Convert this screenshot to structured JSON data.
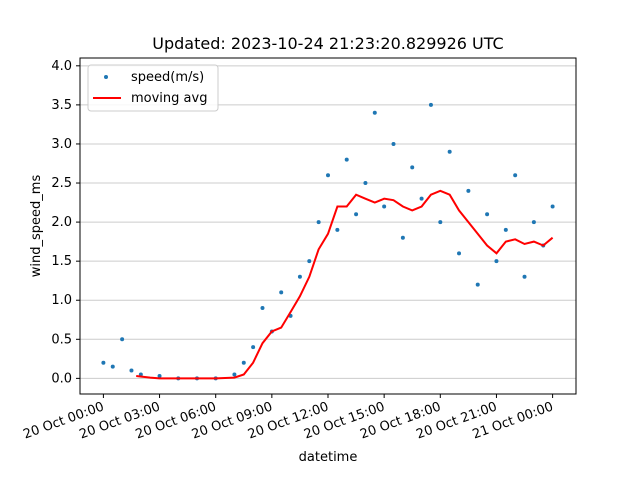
{
  "chart_data": {
    "type": "scatter",
    "title": "Updated: 2023-10-24 21:23:20.829926 UTC",
    "xlabel": "datetime",
    "ylabel": "wind_speed_ms",
    "xlim": [
      "2023-10-19T22:45",
      "2023-10-21T01:15"
    ],
    "ylim": [
      -0.2,
      4.1
    ],
    "y_ticks": [
      0.0,
      0.5,
      1.0,
      1.5,
      2.0,
      2.5,
      3.0,
      3.5,
      4.0
    ],
    "y_tick_labels": [
      "0.0",
      "0.5",
      "1.0",
      "1.5",
      "2.0",
      "2.5",
      "3.0",
      "3.5",
      "4.0"
    ],
    "x_ticks": [
      "2023-10-20T00:00",
      "2023-10-20T03:00",
      "2023-10-20T06:00",
      "2023-10-20T09:00",
      "2023-10-20T12:00",
      "2023-10-20T15:00",
      "2023-10-20T18:00",
      "2023-10-20T21:00",
      "2023-10-21T00:00"
    ],
    "x_tick_labels": [
      "20 Oct 00:00",
      "20 Oct 03:00",
      "20 Oct 06:00",
      "20 Oct 09:00",
      "20 Oct 12:00",
      "20 Oct 15:00",
      "20 Oct 18:00",
      "20 Oct 21:00",
      "21 Oct 00:00"
    ],
    "x_tick_rotation_deg": 20,
    "grid": "horizontal",
    "legend_position": "top-left",
    "series": [
      {
        "name": "speed(m/s)",
        "type": "scatter",
        "color": "#1f77b4",
        "x": [
          "2023-10-20T00:00",
          "2023-10-20T00:30",
          "2023-10-20T01:00",
          "2023-10-20T01:30",
          "2023-10-20T02:00",
          "2023-10-20T03:00",
          "2023-10-20T04:00",
          "2023-10-20T05:00",
          "2023-10-20T06:00",
          "2023-10-20T07:00",
          "2023-10-20T07:30",
          "2023-10-20T08:00",
          "2023-10-20T08:30",
          "2023-10-20T09:00",
          "2023-10-20T09:30",
          "2023-10-20T10:00",
          "2023-10-20T10:30",
          "2023-10-20T11:00",
          "2023-10-20T11:30",
          "2023-10-20T12:00",
          "2023-10-20T12:30",
          "2023-10-20T13:00",
          "2023-10-20T13:30",
          "2023-10-20T14:00",
          "2023-10-20T14:30",
          "2023-10-20T15:00",
          "2023-10-20T15:30",
          "2023-10-20T16:00",
          "2023-10-20T16:30",
          "2023-10-20T17:00",
          "2023-10-20T17:30",
          "2023-10-20T18:00",
          "2023-10-20T18:30",
          "2023-10-20T19:00",
          "2023-10-20T19:30",
          "2023-10-20T20:00",
          "2023-10-20T20:30",
          "2023-10-20T21:00",
          "2023-10-20T21:30",
          "2023-10-20T22:00",
          "2023-10-20T22:30",
          "2023-10-20T23:00",
          "2023-10-20T23:30",
          "2023-10-21T00:00"
        ],
        "y": [
          0.2,
          0.15,
          0.5,
          0.1,
          0.05,
          0.03,
          0.0,
          0.0,
          0.0,
          0.05,
          0.2,
          0.4,
          0.9,
          0.6,
          1.1,
          0.8,
          1.3,
          1.5,
          2.0,
          2.6,
          1.9,
          2.8,
          2.1,
          2.5,
          3.4,
          2.2,
          3.0,
          1.8,
          2.7,
          2.3,
          3.5,
          2.0,
          2.9,
          1.6,
          2.4,
          1.2,
          2.1,
          1.5,
          1.9,
          2.6,
          1.3,
          2.0,
          1.7,
          2.2
        ]
      },
      {
        "name": "moving avg",
        "type": "line",
        "color": "#ff0000",
        "x": [
          "2023-10-20T01:45",
          "2023-10-20T02:30",
          "2023-10-20T03:00",
          "2023-10-20T04:00",
          "2023-10-20T05:00",
          "2023-10-20T06:00",
          "2023-10-20T07:00",
          "2023-10-20T07:30",
          "2023-10-20T08:00",
          "2023-10-20T08:30",
          "2023-10-20T09:00",
          "2023-10-20T09:30",
          "2023-10-20T10:00",
          "2023-10-20T10:30",
          "2023-10-20T11:00",
          "2023-10-20T11:30",
          "2023-10-20T12:00",
          "2023-10-20T12:30",
          "2023-10-20T13:00",
          "2023-10-20T13:30",
          "2023-10-20T14:00",
          "2023-10-20T14:30",
          "2023-10-20T15:00",
          "2023-10-20T15:30",
          "2023-10-20T16:00",
          "2023-10-20T16:30",
          "2023-10-20T17:00",
          "2023-10-20T17:30",
          "2023-10-20T18:00",
          "2023-10-20T18:30",
          "2023-10-20T19:00",
          "2023-10-20T19:30",
          "2023-10-20T20:00",
          "2023-10-20T20:30",
          "2023-10-20T21:00",
          "2023-10-20T21:30",
          "2023-10-20T22:00",
          "2023-10-20T22:30",
          "2023-10-20T23:00",
          "2023-10-20T23:30",
          "2023-10-21T00:00"
        ],
        "y": [
          0.03,
          0.01,
          0.0,
          0.0,
          0.0,
          0.0,
          0.01,
          0.05,
          0.2,
          0.45,
          0.6,
          0.65,
          0.85,
          1.05,
          1.3,
          1.65,
          1.85,
          2.2,
          2.2,
          2.35,
          2.3,
          2.25,
          2.3,
          2.28,
          2.2,
          2.15,
          2.2,
          2.35,
          2.4,
          2.35,
          2.15,
          2.0,
          1.85,
          1.7,
          1.6,
          1.75,
          1.78,
          1.72,
          1.75,
          1.7,
          1.8
        ]
      }
    ]
  }
}
